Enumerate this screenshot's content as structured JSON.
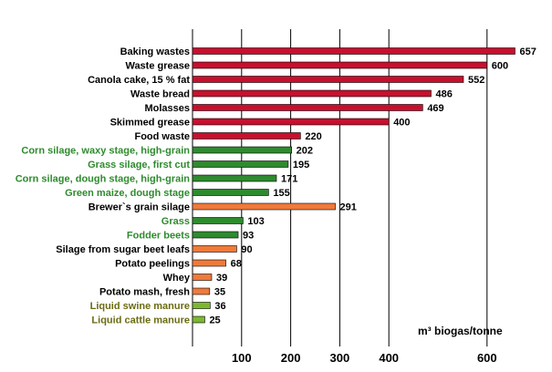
{
  "chart_data": {
    "type": "bar",
    "orientation": "horizontal",
    "categories": [
      "Baking wastes",
      "Waste grease",
      "Canola cake, 15 % fat",
      "Waste bread",
      "Molasses",
      "Skimmed grease",
      "Food waste",
      "Corn silage, waxy stage, high-grain",
      "Grass silage, first cut",
      "Corn silage, dough stage, high-grain",
      "Green maize, dough stage",
      "Brewer`s grain silage",
      "Grass",
      "Fodder beets",
      "Silage from sugar beet leafs",
      "Potato peelings",
      "Whey",
      "Potato mash, fresh",
      "Liquid swine manure",
      "Liquid cattle manure"
    ],
    "values": [
      657,
      600,
      552,
      486,
      469,
      400,
      220,
      202,
      195,
      171,
      155,
      291,
      103,
      93,
      90,
      68,
      39,
      35,
      36,
      25
    ],
    "value_labels": [
      "657",
      "600",
      "552",
      "486",
      "469",
      "400",
      "220",
      "202",
      "195",
      "171",
      "155",
      "291",
      "103",
      "93",
      "90",
      "68",
      "39",
      "35",
      "36",
      "25"
    ],
    "bar_colors": [
      "#c8102e",
      "#c8102e",
      "#c8102e",
      "#c8102e",
      "#c8102e",
      "#c8102e",
      "#c8102e",
      "#2e8b2e",
      "#2e8b2e",
      "#2e8b2e",
      "#2e8b2e",
      "#f07a3a",
      "#2e8b2e",
      "#2e8b2e",
      "#f07a3a",
      "#f07a3a",
      "#f07a3a",
      "#f07a3a",
      "#7cb82f",
      "#7cb82f"
    ],
    "label_colors": [
      "#000000",
      "#000000",
      "#000000",
      "#000000",
      "#000000",
      "#000000",
      "#000000",
      "#2e8b2e",
      "#2e8b2e",
      "#2e8b2e",
      "#2e8b2e",
      "#000000",
      "#2e8b2e",
      "#2e8b2e",
      "#000000",
      "#000000",
      "#000000",
      "#000000",
      "#6b6b10",
      "#6b6b10"
    ],
    "x_ticks": [
      100,
      200,
      300,
      400,
      600
    ],
    "x_tick_labels": [
      "100",
      "200",
      "300",
      "400",
      "600"
    ],
    "xlim": [
      0,
      680
    ],
    "xlabel": "m³ biogas/tonne",
    "grid": true,
    "title": "",
    "ylabel": ""
  }
}
